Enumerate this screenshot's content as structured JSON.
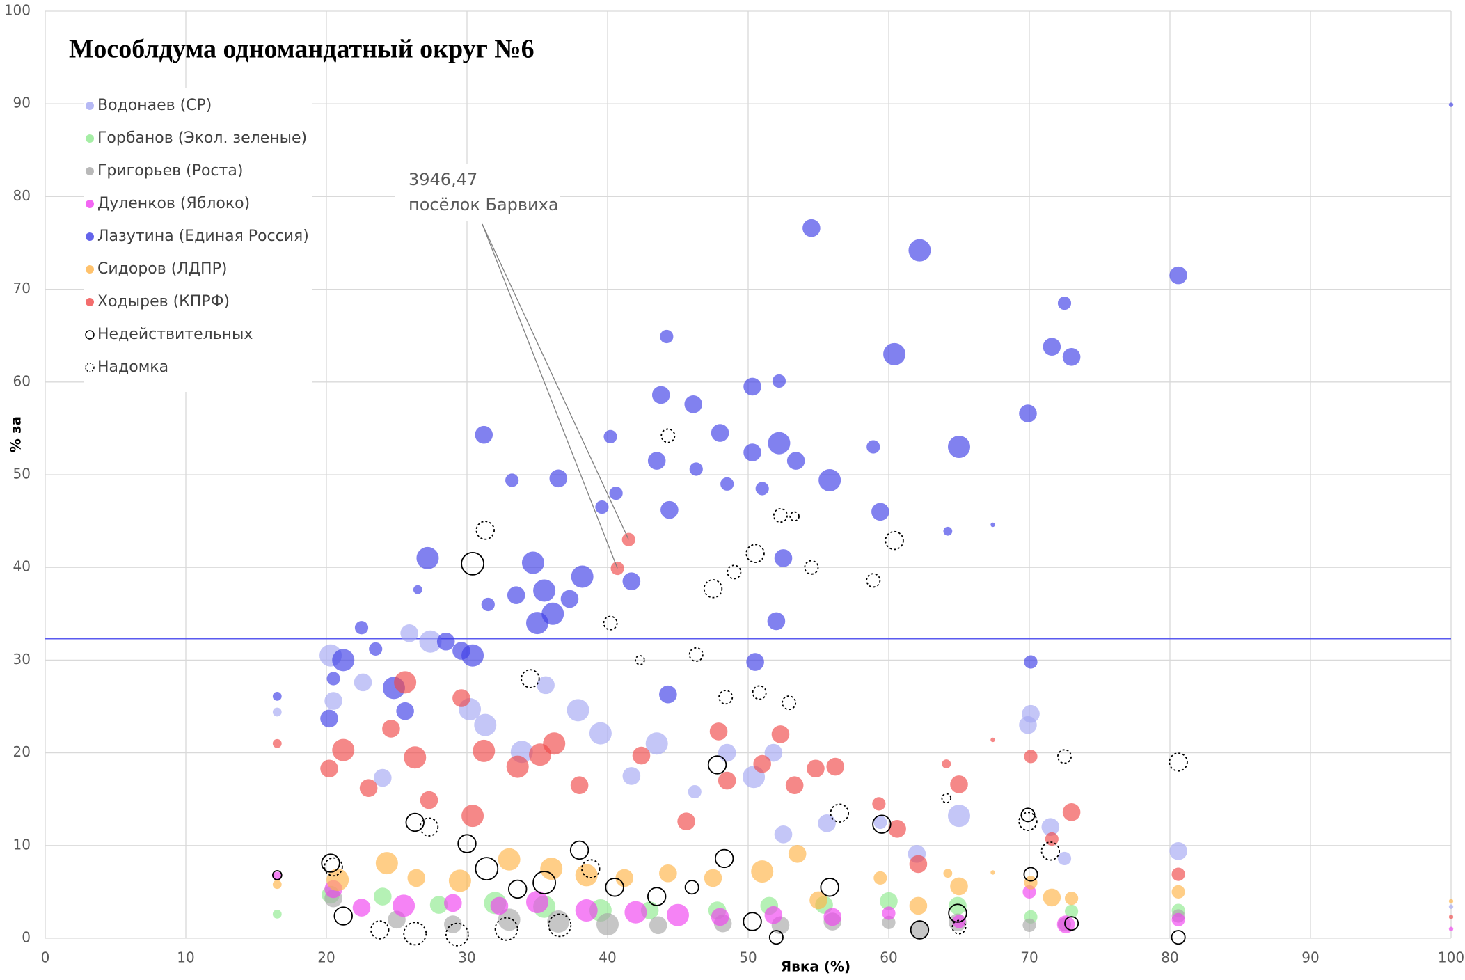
{
  "chart_data": {
    "type": "bubble",
    "title": "Мособлдума одномандатный округ №6",
    "x_label": "Явка (%)",
    "y_label": "% за",
    "xlim": [
      0,
      100
    ],
    "ylim": [
      0,
      100
    ],
    "xticks": [
      0,
      10,
      20,
      30,
      40,
      50,
      60,
      70,
      80,
      90,
      100
    ],
    "yticks": [
      0,
      10,
      20,
      30,
      40,
      50,
      60,
      70,
      80,
      90,
      100
    ],
    "grid": true,
    "legend": "upper left",
    "reference_line": {
      "value": 32.3,
      "color": "#5a5aef"
    },
    "annotation": {
      "lines": [
        "3946,47",
        "посёлок Барвиха"
      ],
      "target_x": [
        41.5,
        40.7
      ],
      "target_y": [
        43,
        39.9
      ]
    },
    "series": [
      {
        "name": "Водонаев (СР)",
        "color": "#a4a8f2",
        "marker": "filled",
        "x": [
          16.5,
          20.3,
          20.5,
          22.6,
          24,
          25.9,
          27.4,
          30.2,
          31.3,
          33.9,
          35.6,
          37.9,
          39.5,
          41.7,
          43.5,
          46.2,
          48.5,
          50.4,
          51.8,
          52.5,
          55.6,
          59.4,
          62,
          65,
          69.9,
          70.1,
          71.5,
          72.5,
          80.6,
          100
        ],
        "values": [
          24.4,
          30.5,
          25.6,
          27.6,
          17.3,
          32.9,
          32,
          24.7,
          23,
          20.1,
          27.3,
          24.6,
          22.1,
          17.5,
          21,
          15.8,
          20,
          17.4,
          20,
          11.2,
          12.4,
          12.5,
          9.1,
          13.2,
          23,
          24.2,
          12,
          8.6,
          9.4,
          3.4
        ],
        "sizes": [
          2,
          5,
          4,
          4,
          4,
          4,
          5,
          5,
          5,
          5,
          4,
          5,
          5,
          4,
          5,
          3,
          4,
          5,
          4,
          4,
          4,
          3,
          4,
          5,
          4,
          4,
          4,
          3,
          4,
          1
        ]
      },
      {
        "name": "Горбанов (Экол. зеленые)",
        "color": "#8eea8e",
        "marker": "filled",
        "x": [
          16.5,
          20.3,
          24,
          28,
          32,
          35.5,
          39.5,
          43,
          47.8,
          51.5,
          55.4,
          60,
          64.9,
          70.1,
          73,
          80.6
        ],
        "values": [
          2.6,
          4.7,
          4.5,
          3.6,
          3.8,
          3.4,
          3,
          3,
          3,
          3.5,
          3.6,
          4,
          3.5,
          2.3,
          2.9,
          3
        ],
        "sizes": [
          2,
          4,
          4,
          4,
          5,
          5,
          5,
          4,
          4,
          4,
          4,
          4,
          4,
          3,
          3,
          3
        ]
      },
      {
        "name": "Григорьев (Роста)",
        "color": "#a8a8a8",
        "marker": "filled",
        "x": [
          20.5,
          25,
          29,
          33,
          36.5,
          40,
          43.6,
          48.2,
          52.3,
          56,
          60,
          62.2,
          64.9,
          70,
          72.5,
          80.6
        ],
        "values": [
          4.3,
          2,
          1.5,
          2,
          1.8,
          1.5,
          1.4,
          1.6,
          1.4,
          1.8,
          1.7,
          1,
          1.7,
          1.4,
          1.5,
          2.4
        ],
        "sizes": [
          4,
          4,
          4,
          5,
          5,
          5,
          4,
          4,
          4,
          4,
          3,
          4,
          4,
          3,
          3,
          3
        ]
      },
      {
        "name": "Дуленков (Яблоко)",
        "color": "#f040f0",
        "marker": "filled",
        "x": [
          16.5,
          20.5,
          22.5,
          25.5,
          29,
          32.3,
          35,
          38.5,
          42,
          45,
          48,
          51.8,
          56,
          60,
          65,
          70,
          72.6,
          80.6,
          100
        ],
        "values": [
          6.7,
          5.3,
          3.3,
          3.5,
          3.8,
          3.5,
          3.9,
          3,
          2.8,
          2.5,
          2.3,
          2.5,
          2.3,
          2.7,
          1.8,
          5,
          1.5,
          2,
          1
        ],
        "sizes": [
          2,
          4,
          4,
          5,
          4,
          4,
          5,
          5,
          5,
          5,
          4,
          4,
          4,
          3,
          3,
          3,
          4,
          3,
          1
        ]
      },
      {
        "name": "Лазутина (Единая Россия)",
        "color": "#3d3de6",
        "marker": "filled",
        "x": [
          16.5,
          20.2,
          21.2,
          22.5,
          24.8,
          25.6,
          26.5,
          27.2,
          28.5,
          29.6,
          30.4,
          31.2,
          31.5,
          33.2,
          33.5,
          34.7,
          35,
          36.1,
          36.5,
          37.3,
          38.2,
          39.6,
          40.2,
          40.6,
          41.7,
          43.5,
          43.8,
          44.2,
          44.4,
          46.1,
          46.3,
          48,
          48.5,
          50.3,
          50.3,
          51,
          52.2,
          52.2,
          52.5,
          53.4,
          54.5,
          55.8,
          58.9,
          59.4,
          60.4,
          62.2,
          64.2,
          65,
          67.4,
          69.9,
          70.1,
          71.6,
          72.5,
          73,
          80.6,
          100,
          50.5,
          52,
          44.3,
          20.5,
          23.5,
          35.5
        ],
        "values": [
          26.1,
          23.7,
          30,
          33.5,
          27,
          24.5,
          37.6,
          41,
          32,
          31,
          30.5,
          54.3,
          36,
          49.4,
          37,
          40.5,
          34,
          35,
          49.6,
          36.6,
          39,
          46.5,
          54.1,
          48,
          38.5,
          51.5,
          58.6,
          64.9,
          46.2,
          57.6,
          50.6,
          54.5,
          49,
          59.5,
          52.4,
          48.5,
          60.1,
          53.4,
          41,
          51.5,
          76.6,
          49.4,
          53,
          46,
          63,
          74.2,
          43.9,
          53,
          44.6,
          56.6,
          29.8,
          63.8,
          68.5,
          62.7,
          71.5,
          89.9,
          29.8,
          34.2,
          26.3,
          28,
          31.2,
          37.5
        ],
        "sizes": [
          2,
          4,
          5,
          3,
          5,
          4,
          2,
          5,
          4,
          4,
          5,
          4,
          3,
          3,
          4,
          5,
          5,
          5,
          4,
          4,
          5,
          3,
          3,
          3,
          4,
          4,
          4,
          3,
          4,
          4,
          3,
          4,
          3,
          4,
          4,
          3,
          3,
          5,
          4,
          4,
          4,
          5,
          3,
          4,
          5,
          5,
          2,
          5,
          1,
          4,
          3,
          4,
          3,
          4,
          4,
          1,
          4,
          4,
          4,
          3,
          3,
          5
        ]
      },
      {
        "name": "Сидоров (ЛДПР)",
        "color": "#ffb347",
        "marker": "filled",
        "x": [
          16.5,
          20.8,
          24.3,
          26.4,
          29.5,
          33,
          36,
          38.5,
          41.2,
          44.3,
          47.5,
          51,
          53.5,
          55,
          59.4,
          62.1,
          64.2,
          65,
          67.4,
          70.1,
          71.6,
          73,
          80.6,
          100
        ],
        "values": [
          5.8,
          6.3,
          8.1,
          6.5,
          6.2,
          8.5,
          7.5,
          6.8,
          6.5,
          7,
          6.5,
          7.2,
          9.1,
          4.1,
          6.5,
          3.5,
          7,
          5.6,
          7.1,
          6,
          4.4,
          4.3,
          5,
          4
        ],
        "sizes": [
          2,
          5,
          5,
          4,
          5,
          5,
          5,
          5,
          4,
          4,
          4,
          5,
          4,
          4,
          3,
          4,
          2,
          4,
          1,
          3,
          4,
          3,
          3,
          1
        ]
      },
      {
        "name": "Ходырев (КПРФ)",
        "color": "#f04848",
        "marker": "filled",
        "x": [
          16.5,
          20.2,
          21.2,
          23,
          24.6,
          25.6,
          26.3,
          27.3,
          29.6,
          30.4,
          31.2,
          33.6,
          35.2,
          36.2,
          38,
          40.7,
          41.5,
          42.4,
          45.6,
          47.9,
          48.5,
          51,
          52.3,
          53.3,
          54.8,
          56.2,
          59.3,
          60.6,
          62.1,
          64.1,
          65,
          67.4,
          70.1,
          71.6,
          73,
          80.6,
          100
        ],
        "values": [
          21,
          18.3,
          20.3,
          16.2,
          22.6,
          27.6,
          19.5,
          14.9,
          25.9,
          13.2,
          20.2,
          18.5,
          19.8,
          21,
          16.5,
          39.9,
          43,
          19.7,
          12.6,
          22.3,
          17,
          18.8,
          22,
          16.5,
          18.3,
          18.5,
          14.5,
          11.8,
          8,
          18.8,
          16.6,
          21.4,
          19.6,
          10.7,
          13.6,
          6.9,
          2.3
        ],
        "sizes": [
          2,
          4,
          5,
          4,
          4,
          5,
          5,
          4,
          4,
          5,
          5,
          5,
          5,
          5,
          4,
          3,
          3,
          4,
          4,
          4,
          4,
          4,
          4,
          4,
          4,
          4,
          3,
          4,
          4,
          2,
          4,
          1,
          3,
          3,
          4,
          3,
          1
        ]
      },
      {
        "name": "Недействительных",
        "color": "#000000",
        "marker": "open",
        "x": [
          16.5,
          20.3,
          21.2,
          26.3,
          30.4,
          30,
          31.4,
          33.6,
          35.5,
          38,
          40.5,
          43.5,
          46,
          47.8,
          48.3,
          50.3,
          52,
          55.8,
          59.5,
          62.2,
          64.9,
          69.9,
          70.1,
          73,
          80.6
        ],
        "values": [
          6.8,
          8.1,
          2.4,
          12.5,
          40.4,
          10.2,
          7.5,
          5.3,
          6,
          9.5,
          5.5,
          4.5,
          5.5,
          18.7,
          8.6,
          1.8,
          0.1,
          5.5,
          12.3,
          0.9,
          2.7,
          13.3,
          6.9,
          1.6,
          0.1
        ],
        "sizes": [
          2,
          4,
          4,
          4,
          5,
          4,
          5,
          4,
          5,
          4,
          4,
          4,
          3,
          4,
          4,
          4,
          3,
          4,
          4,
          4,
          4,
          3,
          3,
          3,
          3
        ]
      },
      {
        "name": "Надомка",
        "color": "#000000",
        "marker": "dashed",
        "x": [
          20.5,
          23.8,
          26.3,
          27.3,
          29.3,
          31.3,
          32.8,
          34.5,
          36.6,
          38.8,
          40.2,
          42.3,
          44.3,
          46.3,
          47.5,
          48.4,
          49,
          50.5,
          50.8,
          52.3,
          52.9,
          53.3,
          54.5,
          56.5,
          58.9,
          60.4,
          64.1,
          65,
          69.9,
          71.5,
          72.5,
          80.6
        ],
        "values": [
          7.7,
          0.9,
          0.5,
          12,
          0.4,
          44,
          1,
          28,
          1.4,
          7.5,
          34,
          30,
          54.2,
          30.6,
          37.7,
          26,
          39.5,
          41.5,
          26.5,
          45.6,
          25.4,
          45.5,
          40,
          13.5,
          38.6,
          42.9,
          15.1,
          1.2,
          12.6,
          9.4,
          19.6,
          19
        ],
        "sizes": [
          4,
          4,
          5,
          4,
          5,
          4,
          5,
          4,
          5,
          4,
          3,
          2,
          3,
          3,
          4,
          3,
          3,
          4,
          3,
          3,
          3,
          2,
          3,
          4,
          3,
          4,
          2,
          3,
          4,
          4,
          3,
          4
        ]
      }
    ]
  }
}
